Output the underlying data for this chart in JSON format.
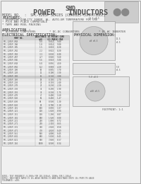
{
  "bg_color": "#f0f0f0",
  "title1": "SMD",
  "title2": "POWER   INDUCTORS",
  "model_line": "MODEL NO.  :  SPC-1205P SERIES (CDRH125-COMPATIBLE)",
  "features_title": "FEATURES:",
  "features": [
    "* SUPERIOR QUALITY 300EM. AL. AUTO-EM TEMPERATURE FOR USE",
    "* PICK AND PLACE COMPATIBLE",
    "* TAPE AND REEL PACKING"
  ],
  "application_title": "APPLICATION :",
  "applications": [
    "* NOTEBOOK COMPUTERS",
    "* DC-DC CONVERTERS",
    "* DC-AC INVERTER"
  ],
  "elec_title": "ELECTRICAL SPECIFICATION:",
  "phys_title": "PHYSICAL DIMENSION:",
  "table_headers": [
    "PART NO.",
    "INDUCTANCE\n(uH)",
    "DC RES\n(O)\nMAX",
    "SAT CURR\n(A)\n(MAX)"
  ],
  "table_rows": [
    [
      "SPC-1205P-0R8",
      "0.8",
      "0.014",
      "9.80"
    ],
    [
      "SPC-1205P-1R0",
      "1.0",
      "0.014",
      "9.80"
    ],
    [
      "SPC-1205P-1R5",
      "1.5",
      "0.018",
      "8.30"
    ],
    [
      "SPC-1205P-2R2",
      "2.2",
      "0.022",
      "8.30"
    ],
    [
      "SPC-1205P-3R3",
      "3.3",
      "0.030",
      "6.80"
    ],
    [
      "SPC-1205P-4R7",
      "4.7",
      "0.040",
      "5.60"
    ],
    [
      "SPC-1205P-5R6",
      "5.6",
      "0.048",
      "5.00"
    ],
    [
      "SPC-1205P-6R8",
      "6.8",
      "0.056",
      "4.50"
    ],
    [
      "SPC-1205P-8R2",
      "8.2",
      "0.068",
      "4.10"
    ],
    [
      "SPC-1205P-100",
      "10",
      "0.085",
      "3.70"
    ],
    [
      "SPC-1205P-120",
      "12",
      "0.100",
      "3.30"
    ],
    [
      "SPC-1205P-150",
      "15",
      "0.130",
      "3.00"
    ],
    [
      "SPC-1205P-180",
      "18",
      "0.150",
      "2.70"
    ],
    [
      "SPC-1205P-220",
      "22",
      "0.190",
      "2.40"
    ],
    [
      "SPC-1205P-270",
      "27",
      "0.230",
      "2.20"
    ],
    [
      "SPC-1205P-330",
      "33",
      "0.280",
      "1.90"
    ],
    [
      "SPC-1205P-390",
      "39",
      "0.330",
      "1.75"
    ],
    [
      "SPC-1205P-470",
      "47",
      "0.400",
      "1.60"
    ],
    [
      "SPC-1205P-560",
      "56",
      "0.480",
      "1.47"
    ],
    [
      "SPC-1205P-680",
      "68",
      "0.580",
      "1.30"
    ],
    [
      "SPC-1205P-820",
      "82",
      "0.700",
      "1.18"
    ],
    [
      "SPC-1205P-101",
      "100",
      "0.850",
      "1.07"
    ],
    [
      "SPC-1205P-121",
      "120",
      "1.020",
      "0.98"
    ],
    [
      "SPC-1205P-151",
      "150",
      "1.280",
      "0.87"
    ],
    [
      "SPC-1205P-181",
      "180",
      "1.540",
      "0.80"
    ],
    [
      "SPC-1205P-221",
      "220",
      "1.880",
      "0.72"
    ],
    [
      "SPC-1205P-271",
      "270",
      "2.310",
      "0.65"
    ],
    [
      "SPC-1205P-331",
      "330",
      "2.820",
      "0.58"
    ],
    [
      "SPC-1205P-471",
      "470",
      "4.020",
      "0.49"
    ],
    [
      "SPC-1205P-561",
      "560",
      "4.800",
      "0.45"
    ],
    [
      "SPC-1205P-681",
      "680",
      "5.830",
      "0.41"
    ],
    [
      "SPC-1205P-821",
      "820",
      "7.040",
      "0.37"
    ],
    [
      "SPC-1205P-102",
      "1000",
      "8.580",
      "0.34"
    ]
  ],
  "note1": "NOTE1: TEST FREQUENCY: 0.25KHz FOR 100-3300uH, 100KHz FOR 1-100uH",
  "note2": "NOTE2: INDUCTANCE RATED IS 10% ABOVE RATING IS WHEN INDUCTANCE DROPS 10% FROM ITS VALUE",
  "footer": "TOLERANCE: ±20%",
  "highlight_row": 11,
  "text_color": "#555555",
  "header_color": "#888888",
  "line_color": "#aaaaaa",
  "highlight_color": "#cccccc"
}
